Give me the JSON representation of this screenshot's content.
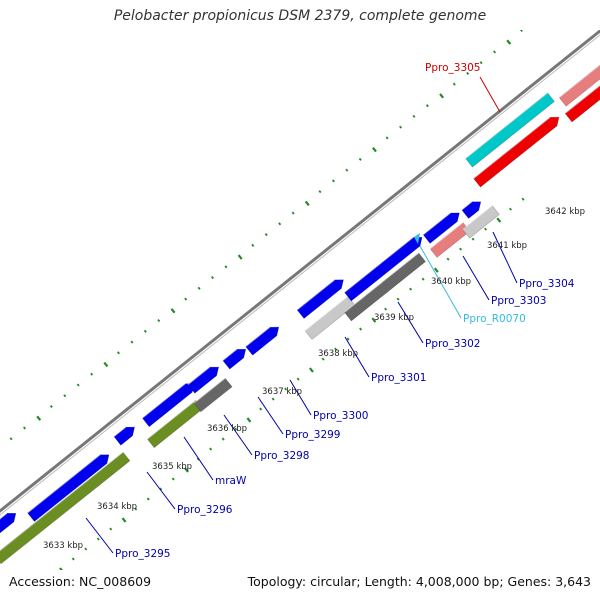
{
  "title": "Pelobacter propionicus DSM 2379, complete genome",
  "footer": {
    "accession": "Accession: NC_008609",
    "summary": "Topology: circular; Length: 4,008,000 bp; Genes: 3,643"
  },
  "colors": {
    "cds": "#0000ee",
    "cds_light": "#e87d7d",
    "cds_red": "#ee0000",
    "cyan": "#00c8c8",
    "olive": "#6b8e23",
    "dark_gray": "#666666",
    "light_gray": "#c8c8c8",
    "backbone": "#777777",
    "tick": "#228b22",
    "label_blue": "#0000aa",
    "label_red": "#cc0000",
    "label_cyan": "#33bbdd"
  },
  "scale_ticks": [
    {
      "label": "3633 kbp"
    },
    {
      "label": "3634 kbp"
    },
    {
      "label": "3635 kbp"
    },
    {
      "label": "3636 kbp"
    },
    {
      "label": "3637 kbp"
    },
    {
      "label": "3638 kbp"
    },
    {
      "label": "3639 kbp"
    },
    {
      "label": "3640 kbp"
    },
    {
      "label": "3641 kbp"
    },
    {
      "label": "3642 kbp"
    }
  ],
  "gene_labels": [
    {
      "name": "Ppro_3295",
      "color": "#0000aa"
    },
    {
      "name": "Ppro_3296",
      "color": "#0000aa"
    },
    {
      "name": "mraW",
      "color": "#0000aa"
    },
    {
      "name": "Ppro_3298",
      "color": "#0000aa"
    },
    {
      "name": "Ppro_3299",
      "color": "#0000aa"
    },
    {
      "name": "Ppro_3300",
      "color": "#0000aa"
    },
    {
      "name": "Ppro_3301",
      "color": "#0000aa"
    },
    {
      "name": "Ppro_3302",
      "color": "#0000aa"
    },
    {
      "name": "Ppro_R0070",
      "color": "#33bbdd"
    },
    {
      "name": "Ppro_3303",
      "color": "#0000aa"
    },
    {
      "name": "Ppro_3304",
      "color": "#0000aa"
    },
    {
      "name": "Ppro_3305",
      "color": "#cc0000"
    }
  ]
}
